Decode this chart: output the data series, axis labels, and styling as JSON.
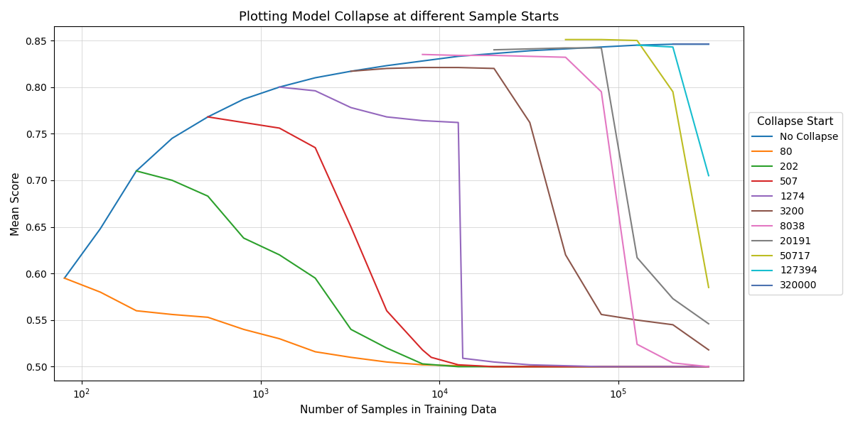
{
  "title": "Plotting Model Collapse at different Sample Starts",
  "xlabel": "Number of Samples in Training Data",
  "ylabel": "Mean Score",
  "ylim": [
    0.485,
    0.865
  ],
  "xlim": [
    70,
    500000
  ],
  "legend_title": "Collapse Start",
  "series": [
    {
      "label": "No Collapse",
      "color": "#1f77b4",
      "x": [
        80,
        127,
        202,
        320,
        507,
        804,
        1274,
        2021,
        3200,
        5072,
        8038,
        12741,
        20191,
        32000,
        50717,
        80378,
        127394,
        201914,
        320000
      ],
      "y": [
        0.595,
        0.648,
        0.71,
        0.745,
        0.768,
        0.787,
        0.8,
        0.81,
        0.817,
        0.823,
        0.828,
        0.833,
        0.836,
        0.839,
        0.841,
        0.843,
        0.845,
        0.846,
        0.846
      ]
    },
    {
      "label": "80",
      "color": "#ff7f0e",
      "x": [
        80,
        127,
        202,
        320,
        507,
        804,
        1274,
        2021,
        3200,
        5072,
        8038,
        12741,
        20191,
        32000,
        50717,
        80378,
        127394,
        201914,
        320000
      ],
      "y": [
        0.595,
        0.58,
        0.56,
        0.556,
        0.553,
        0.54,
        0.53,
        0.516,
        0.51,
        0.505,
        0.502,
        0.501,
        0.5,
        0.5,
        0.5,
        0.5,
        0.5,
        0.5,
        0.5
      ]
    },
    {
      "label": "202",
      "color": "#2ca02c",
      "x": [
        202,
        320,
        507,
        804,
        1274,
        2021,
        3200,
        5072,
        8038,
        12741,
        20191,
        32000,
        50717,
        80378,
        127394,
        201914,
        320000
      ],
      "y": [
        0.71,
        0.7,
        0.683,
        0.638,
        0.62,
        0.595,
        0.54,
        0.52,
        0.503,
        0.5,
        0.5,
        0.5,
        0.5,
        0.5,
        0.5,
        0.5,
        0.5
      ]
    },
    {
      "label": "507",
      "color": "#d62728",
      "x": [
        507,
        804,
        1274,
        2021,
        3200,
        5072,
        8038,
        9000,
        12741,
        20191,
        32000,
        50717,
        80378,
        127394,
        201914,
        320000
      ],
      "y": [
        0.768,
        0.762,
        0.756,
        0.735,
        0.65,
        0.56,
        0.518,
        0.51,
        0.502,
        0.5,
        0.5,
        0.5,
        0.5,
        0.5,
        0.5,
        0.5
      ]
    },
    {
      "label": "1274",
      "color": "#9467bd",
      "x": [
        1274,
        2021,
        3200,
        5072,
        8038,
        12741,
        13500,
        20191,
        32000,
        50717,
        80378,
        127394,
        201914,
        320000
      ],
      "y": [
        0.8,
        0.796,
        0.778,
        0.768,
        0.764,
        0.762,
        0.509,
        0.505,
        0.502,
        0.501,
        0.5,
        0.5,
        0.5,
        0.5
      ]
    },
    {
      "label": "3200",
      "color": "#8c564b",
      "x": [
        3200,
        5072,
        8038,
        12741,
        20191,
        32000,
        50717,
        80378,
        127394,
        201914,
        320000
      ],
      "y": [
        0.817,
        0.82,
        0.821,
        0.821,
        0.82,
        0.762,
        0.62,
        0.556,
        0.55,
        0.545,
        0.518
      ]
    },
    {
      "label": "8038",
      "color": "#e377c2",
      "x": [
        8038,
        12741,
        20191,
        32000,
        50717,
        80378,
        127394,
        201914,
        320000
      ],
      "y": [
        0.835,
        0.834,
        0.834,
        0.833,
        0.832,
        0.795,
        0.524,
        0.504,
        0.5
      ]
    },
    {
      "label": "20191",
      "color": "#7f7f7f",
      "x": [
        20191,
        32000,
        50717,
        80378,
        127394,
        201914,
        320000
      ],
      "y": [
        0.84,
        0.841,
        0.842,
        0.842,
        0.617,
        0.573,
        0.546
      ]
    },
    {
      "label": "50717",
      "color": "#bcbd22",
      "x": [
        50717,
        80378,
        127394,
        201914,
        320000
      ],
      "y": [
        0.851,
        0.851,
        0.85,
        0.795,
        0.585
      ]
    },
    {
      "label": "127394",
      "color": "#17becf",
      "x": [
        127394,
        201914,
        320000
      ],
      "y": [
        0.845,
        0.843,
        0.705
      ]
    },
    {
      "label": "320000",
      "color": "#4c72b0",
      "x": [
        201914,
        320000
      ],
      "y": [
        0.846,
        0.846
      ]
    }
  ]
}
